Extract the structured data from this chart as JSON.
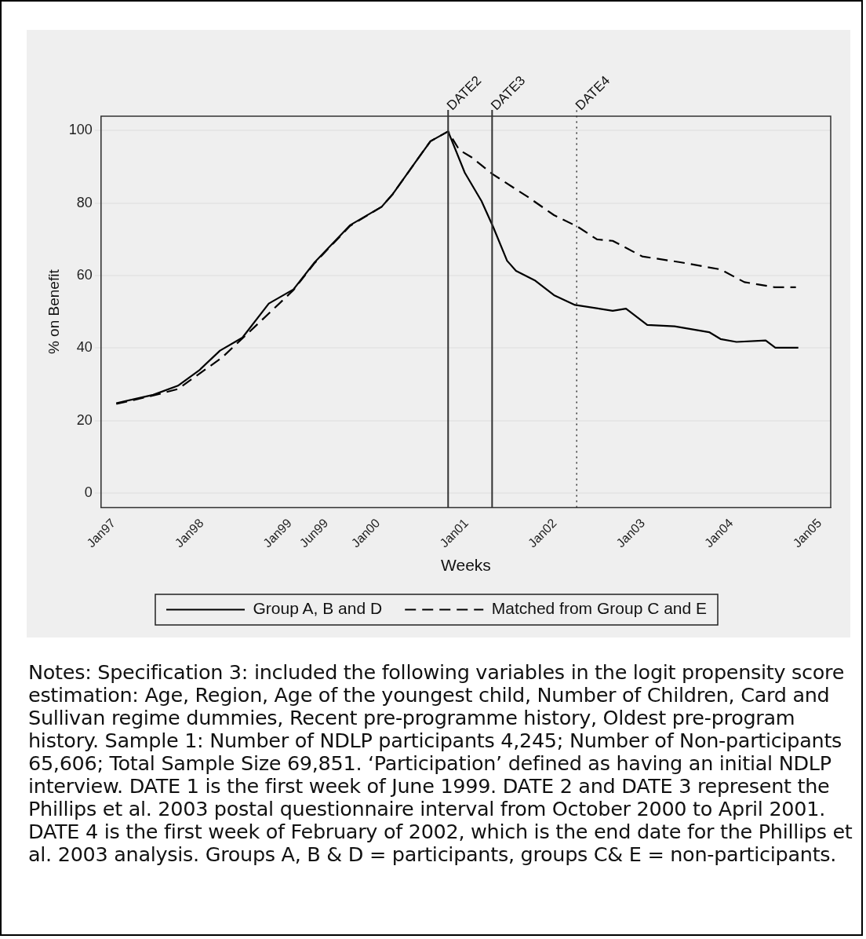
{
  "chart_data": {
    "type": "line",
    "xlabel": "Weeks",
    "ylabel": "% on Benefit",
    "xlim": [
      "1996-11-10",
      "2005-02-15"
    ],
    "xticks": [
      {
        "value": "1997-01-01",
        "label": "Jan97"
      },
      {
        "value": "1998-01-01",
        "label": "Jan98"
      },
      {
        "value": "1999-01-01",
        "label": "Jan99"
      },
      {
        "value": "1999-06-01",
        "label": "Jun99"
      },
      {
        "value": "2000-01-01",
        "label": "Jan00"
      },
      {
        "value": "2001-01-01",
        "label": "Jan01"
      },
      {
        "value": "2002-01-01",
        "label": "Jan02"
      },
      {
        "value": "2003-01-01",
        "label": "Jan03"
      },
      {
        "value": "2004-01-01",
        "label": "Jan04"
      },
      {
        "value": "2005-01-01",
        "label": "Jan05"
      }
    ],
    "ylim": [
      -4,
      104
    ],
    "yticks": [
      0,
      20,
      40,
      60,
      80,
      100
    ],
    "grid": "y",
    "legend": "bottom",
    "marker": "none",
    "series": [
      {
        "name": "Group A, B and D",
        "color": "#000000",
        "line_style": "solid",
        "x": [
          "1997-01-12",
          "1997-06-14",
          "1997-09-24",
          "1997-12-20",
          "1998-03-17",
          "1998-06-18",
          "1998-10-05",
          "1999-01-15",
          "1999-04-13",
          "1999-09-06",
          "2000-01-15",
          "2000-03-01",
          "2000-06-10",
          "2000-08-04",
          "2000-10-16",
          "2000-12-24",
          "2001-03-03",
          "2001-04-20",
          "2001-06-17",
          "2001-07-24",
          "2001-10-12",
          "2001-12-28",
          "2002-03-25",
          "2002-08-28",
          "2002-10-22",
          "2003-01-18",
          "2003-05-11",
          "2003-10-01",
          "2003-11-17",
          "2004-01-22",
          "2004-05-22",
          "2004-07-01",
          "2004-10-04"
        ],
        "values": [
          24.8,
          27.1,
          29.6,
          33.8,
          39.3,
          42.9,
          52.3,
          56.2,
          63.7,
          73.9,
          79.0,
          82.5,
          92.0,
          97.1,
          99.8,
          88.4,
          80.6,
          73.5,
          64.1,
          61.3,
          58.6,
          54.6,
          51.9,
          50.3,
          50.9,
          46.4,
          46.0,
          44.4,
          42.5,
          41.7,
          42.1,
          40.1,
          40.1
        ]
      },
      {
        "name": "Matched from Group C and E",
        "color": "#000000",
        "line_style": "dashed",
        "x": [
          "1997-01-12",
          "1997-06-14",
          "1997-09-24",
          "1998-03-24",
          "1998-08-10",
          "1999-01-15",
          "1999-04-13",
          "1999-09-06",
          "2000-01-15",
          "2000-03-01",
          "2000-06-10",
          "2000-08-04",
          "2000-10-16",
          "2000-12-01",
          "2001-01-18",
          "2001-04-16",
          "2001-09-09",
          "2001-12-28",
          "2002-04-05",
          "2002-06-24",
          "2002-08-28",
          "2002-12-28",
          "2003-06-03",
          "2003-11-17",
          "2004-02-24",
          "2004-06-28",
          "2004-09-24"
        ],
        "values": [
          24.6,
          26.9,
          28.7,
          37.3,
          46.0,
          56.0,
          63.5,
          73.7,
          79.0,
          82.5,
          92.0,
          97.1,
          99.8,
          94.7,
          92.8,
          88.1,
          81.8,
          76.7,
          73.5,
          70.0,
          69.6,
          65.3,
          63.7,
          61.7,
          58.2,
          56.8,
          56.8
        ]
      }
    ],
    "ref_lines": [
      {
        "axis": "x",
        "value": "2000-10-16",
        "label": "DATE2",
        "color": "#333333",
        "line_style": "solid"
      },
      {
        "axis": "x",
        "value": "2001-04-16",
        "label": "DATE3",
        "color": "#333333",
        "line_style": "solid"
      },
      {
        "axis": "x",
        "value": "2002-04-01",
        "label": "DATE4",
        "color": "#333333",
        "line_style": "dotted"
      }
    ],
    "annotations": [
      "Notes: Specification 3: included the following variables in the logit propensity score estimation: Age, Region, Age of the youngest child, Number of Children, Card and Sullivan regime dummies, Recent pre-programme history, Oldest pre-program history. Sample 1: Number of NDLP participants 4,245; Number of Non-participants 65,606; Total Sample Size 69,851. ‘Participation’ defined as having an initial NDLP interview. DATE 1 is the first week of June 1999. DATE 2 and DATE 3 represent the Phillips et al. 2003 postal questionnaire interval from October 2000 to April 2001. DATE 4 is the first week of February of 2002, which is the end date for the Phillips et al. 2003 analysis. Groups A, B & D = participants, groups C& E = non-participants."
    ]
  }
}
